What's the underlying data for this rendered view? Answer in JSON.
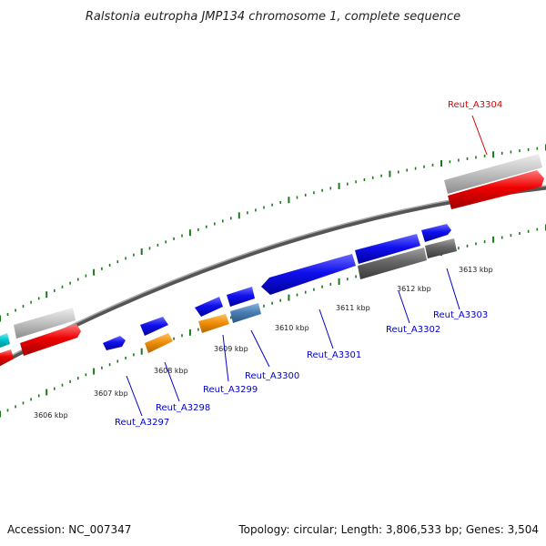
{
  "title": "Ralstonia eutropha JMP134 chromosome 1, complete sequence",
  "footer": {
    "accession": "Accession: NC_007347",
    "summary": "Topology: circular; Length: 3,806,533 bp; Genes: 3,504"
  },
  "colors": {
    "backbone": "#777777",
    "tick": "#1a7a1a",
    "label_blue": "#0000cc",
    "label_red": "#dd0000",
    "cds_blue": "#0000ee",
    "cds_orange": "#f0900a",
    "cds_steel": "#4a7fb5",
    "cds_gray": "#666666",
    "rna_lightgray": "#bdbdbd",
    "rna_red": "#ee0000",
    "cyan": "#00c8d2"
  },
  "scale_labels": [
    {
      "text": "3606 kbp"
    },
    {
      "text": "3607 kbp"
    },
    {
      "text": "3608 kbp"
    },
    {
      "text": "3609 kbp"
    },
    {
      "text": "3610 kbp"
    },
    {
      "text": "3611 kbp"
    },
    {
      "text": "3612 kbp"
    },
    {
      "text": "3613 kbp"
    }
  ],
  "gene_labels": [
    {
      "name": "Reut_A3297",
      "color": "#0000cc"
    },
    {
      "name": "Reut_A3298",
      "color": "#0000cc"
    },
    {
      "name": "Reut_A3299",
      "color": "#0000cc"
    },
    {
      "name": "Reut_A3300",
      "color": "#0000cc"
    },
    {
      "name": "Reut_A3301",
      "color": "#0000cc"
    },
    {
      "name": "Reut_A3302",
      "color": "#0000cc"
    },
    {
      "name": "Reut_A3303",
      "color": "#0000cc"
    },
    {
      "name": "Reut_A3304",
      "color": "#dd0000"
    }
  ]
}
